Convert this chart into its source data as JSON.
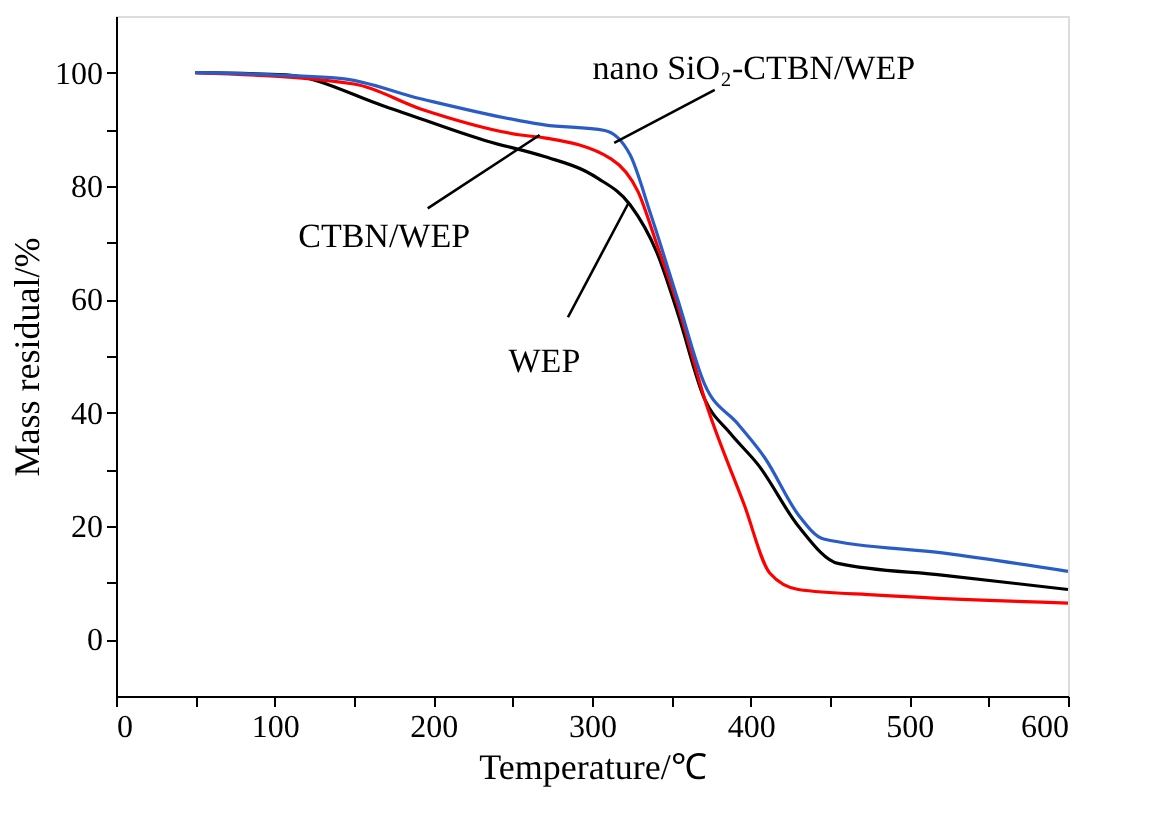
{
  "chart_data": {
    "type": "line",
    "xlabel": "Temperature/℃",
    "ylabel": "Mass residual/%",
    "xlim": [
      0,
      600
    ],
    "ylim": [
      -10,
      110
    ],
    "xticks": [
      0,
      {
        "value": 50,
        "label": null
      },
      100,
      {
        "value": 150,
        "label": null
      },
      200,
      {
        "value": 250,
        "label": null
      },
      300,
      {
        "value": 350,
        "label": null
      },
      400,
      {
        "value": 450,
        "label": null
      },
      500,
      {
        "value": 550,
        "label": null
      },
      600
    ],
    "yticks": [
      0,
      {
        "value": 10,
        "label": null
      },
      20,
      {
        "value": 30,
        "label": null
      },
      40,
      {
        "value": 50,
        "label": null
      },
      60,
      {
        "value": 70,
        "label": null
      },
      80,
      {
        "value": 90,
        "label": null
      },
      100
    ],
    "grid": false,
    "legend": false,
    "marker": "none",
    "line_style": "solid",
    "series": [
      {
        "color": "#000000",
        "x": [
          50,
          107,
          170,
          233,
          270,
          296,
          304,
          324,
          341,
          354,
          371,
          387,
          405,
          430,
          455,
          522,
          600
        ],
        "values": [
          100,
          99.6,
          94,
          88,
          85.2,
          82.6,
          81.3,
          76.7,
          68.2,
          57.6,
          42.4,
          36.4,
          30.7,
          20,
          13.4,
          11.3,
          8.8
        ]
      },
      {
        "color": "#ff0000",
        "x": [
          50,
          150,
          192,
          255,
          270,
          312,
          329,
          341,
          354,
          371,
          396,
          412,
          430,
          480,
          600
        ],
        "values": [
          100,
          98,
          93.6,
          89,
          88.5,
          84.8,
          79,
          69.6,
          59,
          42.4,
          23.7,
          11.7,
          8.8,
          7.8,
          6.4
        ]
      },
      {
        "color": "#2a5cc8",
        "x": [
          50,
          141,
          192,
          255,
          270,
          308,
          324,
          337,
          354,
          371,
          392,
          409,
          430,
          446,
          522,
          600
        ],
        "values": [
          100,
          99,
          95.4,
          91.5,
          90.8,
          89.8,
          85.5,
          75,
          60,
          45,
          38,
          32,
          22,
          17.7,
          15.2,
          12
        ]
      }
    ],
    "annotations": [
      {
        "text": "nano SiO₂-CTBN/WEP",
        "x": 314,
        "y": 87.6
      },
      {
        "text": "CTBN/WEP",
        "x": 267,
        "y": 89
      },
      {
        "text": "WEP",
        "x": 323,
        "y": 77
      }
    ]
  }
}
